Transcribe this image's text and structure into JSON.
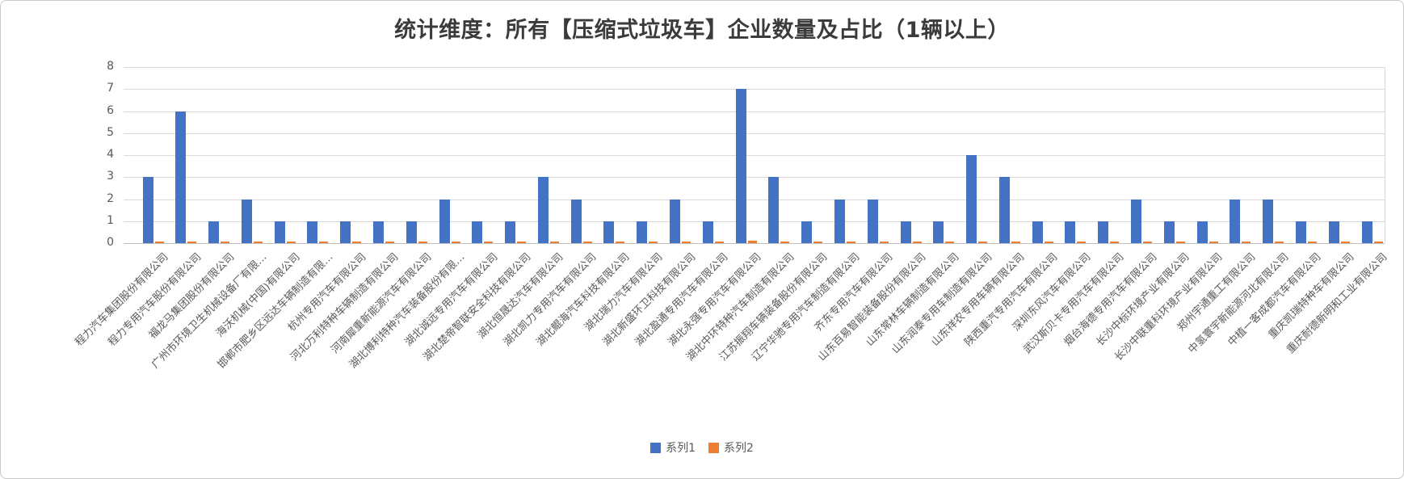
{
  "chart": {
    "title": "统计维度：所有【压缩式垃圾车】企业数量及占比（1辆以上）"
  },
  "chart_data": {
    "type": "bar",
    "title": "统计维度：所有【压缩式垃圾车】企业数量及占比（1辆以上）",
    "xlabel": "",
    "ylabel": "",
    "ylim": [
      0,
      8
    ],
    "yticks": [
      0,
      1,
      2,
      3,
      4,
      5,
      6,
      7,
      8
    ],
    "grid": true,
    "legend_position": "bottom",
    "x_label_rotation": 45,
    "categories": [
      "程力汽车集团股份有限公司",
      "程力专用汽车股份有限公司",
      "福龙马集团股份有限公司",
      "广州市环境卫生机械设备厂有限…",
      "海沃机械(中国)有限公司",
      "邯郸市肥乡区远达车辆制造有限…",
      "杭州专用汽车有限公司",
      "河北万利特种车辆制造有限公司",
      "河南犀重新能源汽车有限公司",
      "湖北博利特种汽车装备股份有限…",
      "湖北诚远专用汽车有限公司",
      "湖北楚帝智联安全科技有限公司",
      "湖北恒晟达汽车有限公司",
      "湖北凯力专用汽车有限公司",
      "湖北鲲海汽车科技有限公司",
      "湖北瑞力汽车有限公司",
      "湖北新盛环卫科技有限公司",
      "湖北盈通专用汽车有限公司",
      "湖北永强专用汽车有限公司",
      "湖北中环特种汽车制造有限公司",
      "江苏振翔车辆装备股份有限公司",
      "辽宁华驰专用汽车制造有限公司",
      "齐东专用汽车有限公司",
      "山东百易智能装备股份有限公司",
      "山东常林车辆制造有限公司",
      "山东润泰专用车制造有限公司",
      "山东祥农专用车辆有限公司",
      "陕西重汽专用汽车有限公司",
      "深圳东风汽车有限公司",
      "武汉斯贝卡专用汽车有限公司",
      "烟台海德专用汽车有限公司",
      "长沙中标环境产业有限公司",
      "长沙中联重科环境产业有限公司",
      "郑州宇通重工有限公司",
      "中氢寰宇新能源河北有限公司",
      "中植一客成都汽车有限公司",
      "重庆凯瑞特种车有限公司",
      "重庆耐德新明和工业有限公司"
    ],
    "series": [
      {
        "name": "系列1",
        "color": "#4472C4",
        "values": [
          3,
          6,
          1,
          2,
          1,
          1,
          1,
          1,
          1,
          2,
          1,
          1,
          3,
          2,
          1,
          1,
          2,
          1,
          7,
          3,
          1,
          2,
          2,
          1,
          1,
          4,
          3,
          1,
          1,
          1,
          2,
          1,
          1,
          2,
          2,
          1,
          1,
          1
        ]
      },
      {
        "name": "系列2",
        "color": "#ED7D31",
        "values": [
          0.043,
          0.087,
          0.014,
          0.029,
          0.014,
          0.014,
          0.014,
          0.014,
          0.014,
          0.029,
          0.014,
          0.014,
          0.043,
          0.029,
          0.014,
          0.014,
          0.029,
          0.014,
          0.101,
          0.043,
          0.014,
          0.029,
          0.029,
          0.014,
          0.014,
          0.058,
          0.043,
          0.014,
          0.014,
          0.014,
          0.029,
          0.014,
          0.014,
          0.029,
          0.029,
          0.014,
          0.014,
          0.014
        ]
      }
    ]
  }
}
